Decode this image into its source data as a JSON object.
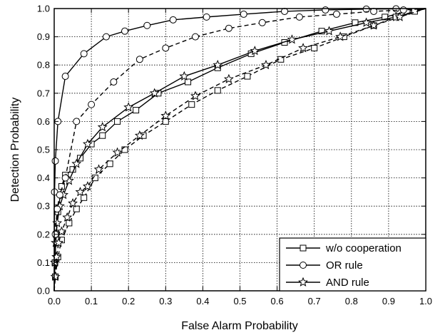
{
  "chart_data": {
    "type": "line",
    "title": "",
    "xlabel": "False Alarm Probability",
    "ylabel": "Detection Probability",
    "xlim": [
      0.0,
      1.0
    ],
    "ylim": [
      0.0,
      1.0
    ],
    "xticks": [
      "0.0",
      "0.1",
      "0.2",
      "0.3",
      "0.4",
      "0.5",
      "0.6",
      "0.7",
      "0.8",
      "0.9",
      "1.0"
    ],
    "yticks": [
      "0.0",
      "0.1",
      "0.2",
      "0.3",
      "0.4",
      "0.5",
      "0.6",
      "0.7",
      "0.8",
      "0.9",
      "1.0"
    ],
    "grid": true,
    "grid_style": "dotted",
    "legend_position": "bottom-right",
    "series": [
      {
        "name": "w/o cooperation",
        "marker": "square",
        "style": "solid",
        "x": [
          0.0,
          0.002,
          0.005,
          0.01,
          0.02,
          0.03,
          0.05,
          0.07,
          0.1,
          0.13,
          0.17,
          0.22,
          0.28,
          0.36,
          0.44,
          0.53,
          0.62,
          0.72,
          0.81,
          0.89,
          0.95,
          1.0
        ],
        "y": [
          0.0,
          0.1,
          0.2,
          0.28,
          0.37,
          0.41,
          0.43,
          0.47,
          0.52,
          0.55,
          0.6,
          0.64,
          0.7,
          0.74,
          0.79,
          0.84,
          0.88,
          0.92,
          0.95,
          0.97,
          0.99,
          1.0
        ]
      },
      {
        "name": "OR rule",
        "marker": "circle",
        "style": "solid",
        "x": [
          0.0,
          0.001,
          0.003,
          0.01,
          0.03,
          0.08,
          0.14,
          0.19,
          0.25,
          0.32,
          0.41,
          0.51,
          0.62,
          0.73,
          0.84,
          0.92,
          1.0
        ],
        "y": [
          0.0,
          0.35,
          0.46,
          0.6,
          0.76,
          0.84,
          0.9,
          0.92,
          0.94,
          0.96,
          0.97,
          0.98,
          0.99,
          0.995,
          0.998,
          0.999,
          1.0
        ]
      },
      {
        "name": "AND rule",
        "marker": "star",
        "style": "solid",
        "x": [
          0.0,
          0.002,
          0.004,
          0.008,
          0.015,
          0.025,
          0.04,
          0.06,
          0.09,
          0.13,
          0.2,
          0.27,
          0.35,
          0.44,
          0.54,
          0.64,
          0.74,
          0.84,
          0.92,
          1.0
        ],
        "y": [
          0.0,
          0.1,
          0.17,
          0.24,
          0.3,
          0.34,
          0.39,
          0.45,
          0.52,
          0.58,
          0.65,
          0.7,
          0.76,
          0.8,
          0.85,
          0.89,
          0.92,
          0.95,
          0.97,
          1.0
        ]
      },
      {
        "name": "",
        "marker": "square",
        "style": "dashed",
        "x": [
          0.0,
          0.003,
          0.01,
          0.02,
          0.04,
          0.06,
          0.08,
          0.11,
          0.15,
          0.19,
          0.24,
          0.3,
          0.37,
          0.44,
          0.52,
          0.61,
          0.7,
          0.78,
          0.86,
          0.92,
          0.97,
          1.0
        ],
        "y": [
          0.0,
          0.05,
          0.12,
          0.18,
          0.24,
          0.29,
          0.33,
          0.4,
          0.45,
          0.5,
          0.55,
          0.6,
          0.66,
          0.71,
          0.76,
          0.82,
          0.86,
          0.9,
          0.94,
          0.97,
          0.99,
          1.0
        ]
      },
      {
        "name": "",
        "marker": "circle",
        "style": "dashed",
        "x": [
          0.0,
          0.003,
          0.008,
          0.015,
          0.03,
          0.06,
          0.1,
          0.16,
          0.23,
          0.3,
          0.38,
          0.47,
          0.56,
          0.66,
          0.76,
          0.86,
          0.94,
          1.0
        ],
        "y": [
          0.0,
          0.2,
          0.29,
          0.34,
          0.4,
          0.6,
          0.66,
          0.74,
          0.82,
          0.86,
          0.9,
          0.93,
          0.95,
          0.97,
          0.98,
          0.99,
          0.995,
          1.0
        ]
      },
      {
        "name": "",
        "marker": "star",
        "style": "dashed",
        "x": [
          0.0,
          0.003,
          0.006,
          0.012,
          0.02,
          0.035,
          0.05,
          0.07,
          0.09,
          0.12,
          0.17,
          0.23,
          0.3,
          0.38,
          0.47,
          0.57,
          0.67,
          0.77,
          0.86,
          0.93,
          1.0
        ],
        "y": [
          0.0,
          0.05,
          0.12,
          0.17,
          0.21,
          0.26,
          0.31,
          0.35,
          0.37,
          0.43,
          0.49,
          0.55,
          0.62,
          0.69,
          0.75,
          0.8,
          0.86,
          0.9,
          0.94,
          0.97,
          1.0
        ]
      }
    ]
  }
}
